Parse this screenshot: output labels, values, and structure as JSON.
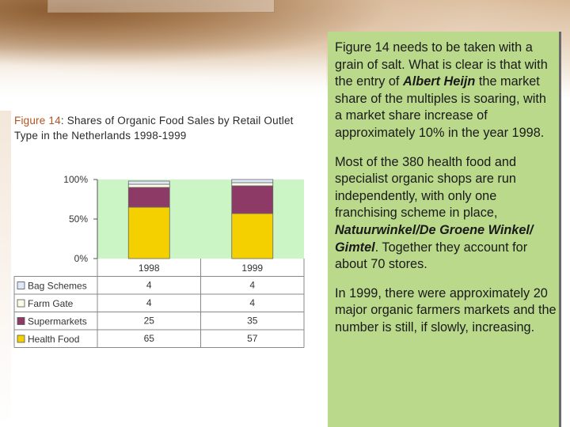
{
  "caption": {
    "figure_ref": "Figure 14",
    "text": ": Shares of Organic Food Sales by Retail Outlet Type in the Netherlands 1998-1999"
  },
  "chart_data": {
    "type": "bar",
    "stacked": true,
    "categories": [
      "1998",
      "1999"
    ],
    "series": [
      {
        "name": "Health Food",
        "values": [
          65,
          57
        ],
        "color": "#f5d000"
      },
      {
        "name": "Supermarkets",
        "values": [
          25,
          35
        ],
        "color": "#8e3a66"
      },
      {
        "name": "Farm Gate",
        "values": [
          4,
          4
        ],
        "color": "#fbfbe6"
      },
      {
        "name": "Bag Schemes",
        "values": [
          4,
          4
        ],
        "color": "#dfe8f8"
      }
    ],
    "yticks": [
      "100%",
      "50%",
      "0%"
    ],
    "ylim": [
      0,
      100
    ],
    "legend": "table-below",
    "plot_bg": "#ccf5c6",
    "table_rows": [
      "Bag Schemes",
      "Farm Gate",
      "Supermarkets",
      "Health Food"
    ]
  },
  "side": {
    "p1_a": "Figure 14 needs to be taken with a grain of salt. What is clear is that with the entry of ",
    "p1_em": "Albert Heijn",
    "p1_b": " the market share of the multiples is soaring, with a market share increase of approximately 10% in the year 1998.",
    "p2_a": "Most of the 380 health food and specialist organic shops are run independently, with only one franchising scheme in place, ",
    "p2_em": "Natuurwinkel/De Groene Winkel/ Gimtel",
    "p2_b": ". Together they account for about 70 stores.",
    "p3": "In 1999, there were approximately 20 major organic farmers markets and the number is still, if slowly, increasing."
  }
}
